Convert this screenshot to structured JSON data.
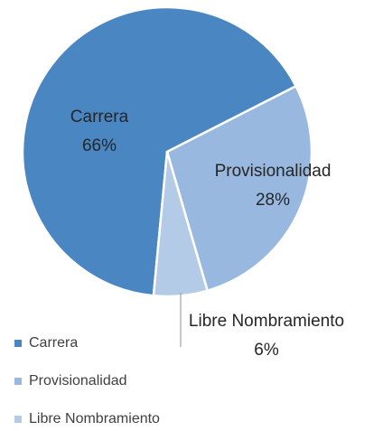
{
  "chart_data": {
    "type": "pie",
    "categories": [
      "Carrera",
      "Provisionalidad",
      "Libre Nombramiento"
    ],
    "values": [
      66,
      28,
      6
    ],
    "value_labels": [
      "66%",
      "28%",
      "6%"
    ],
    "colors": [
      "#4a86c1",
      "#98b8e0",
      "#b4cbe8"
    ],
    "legend": "bottom-left"
  }
}
